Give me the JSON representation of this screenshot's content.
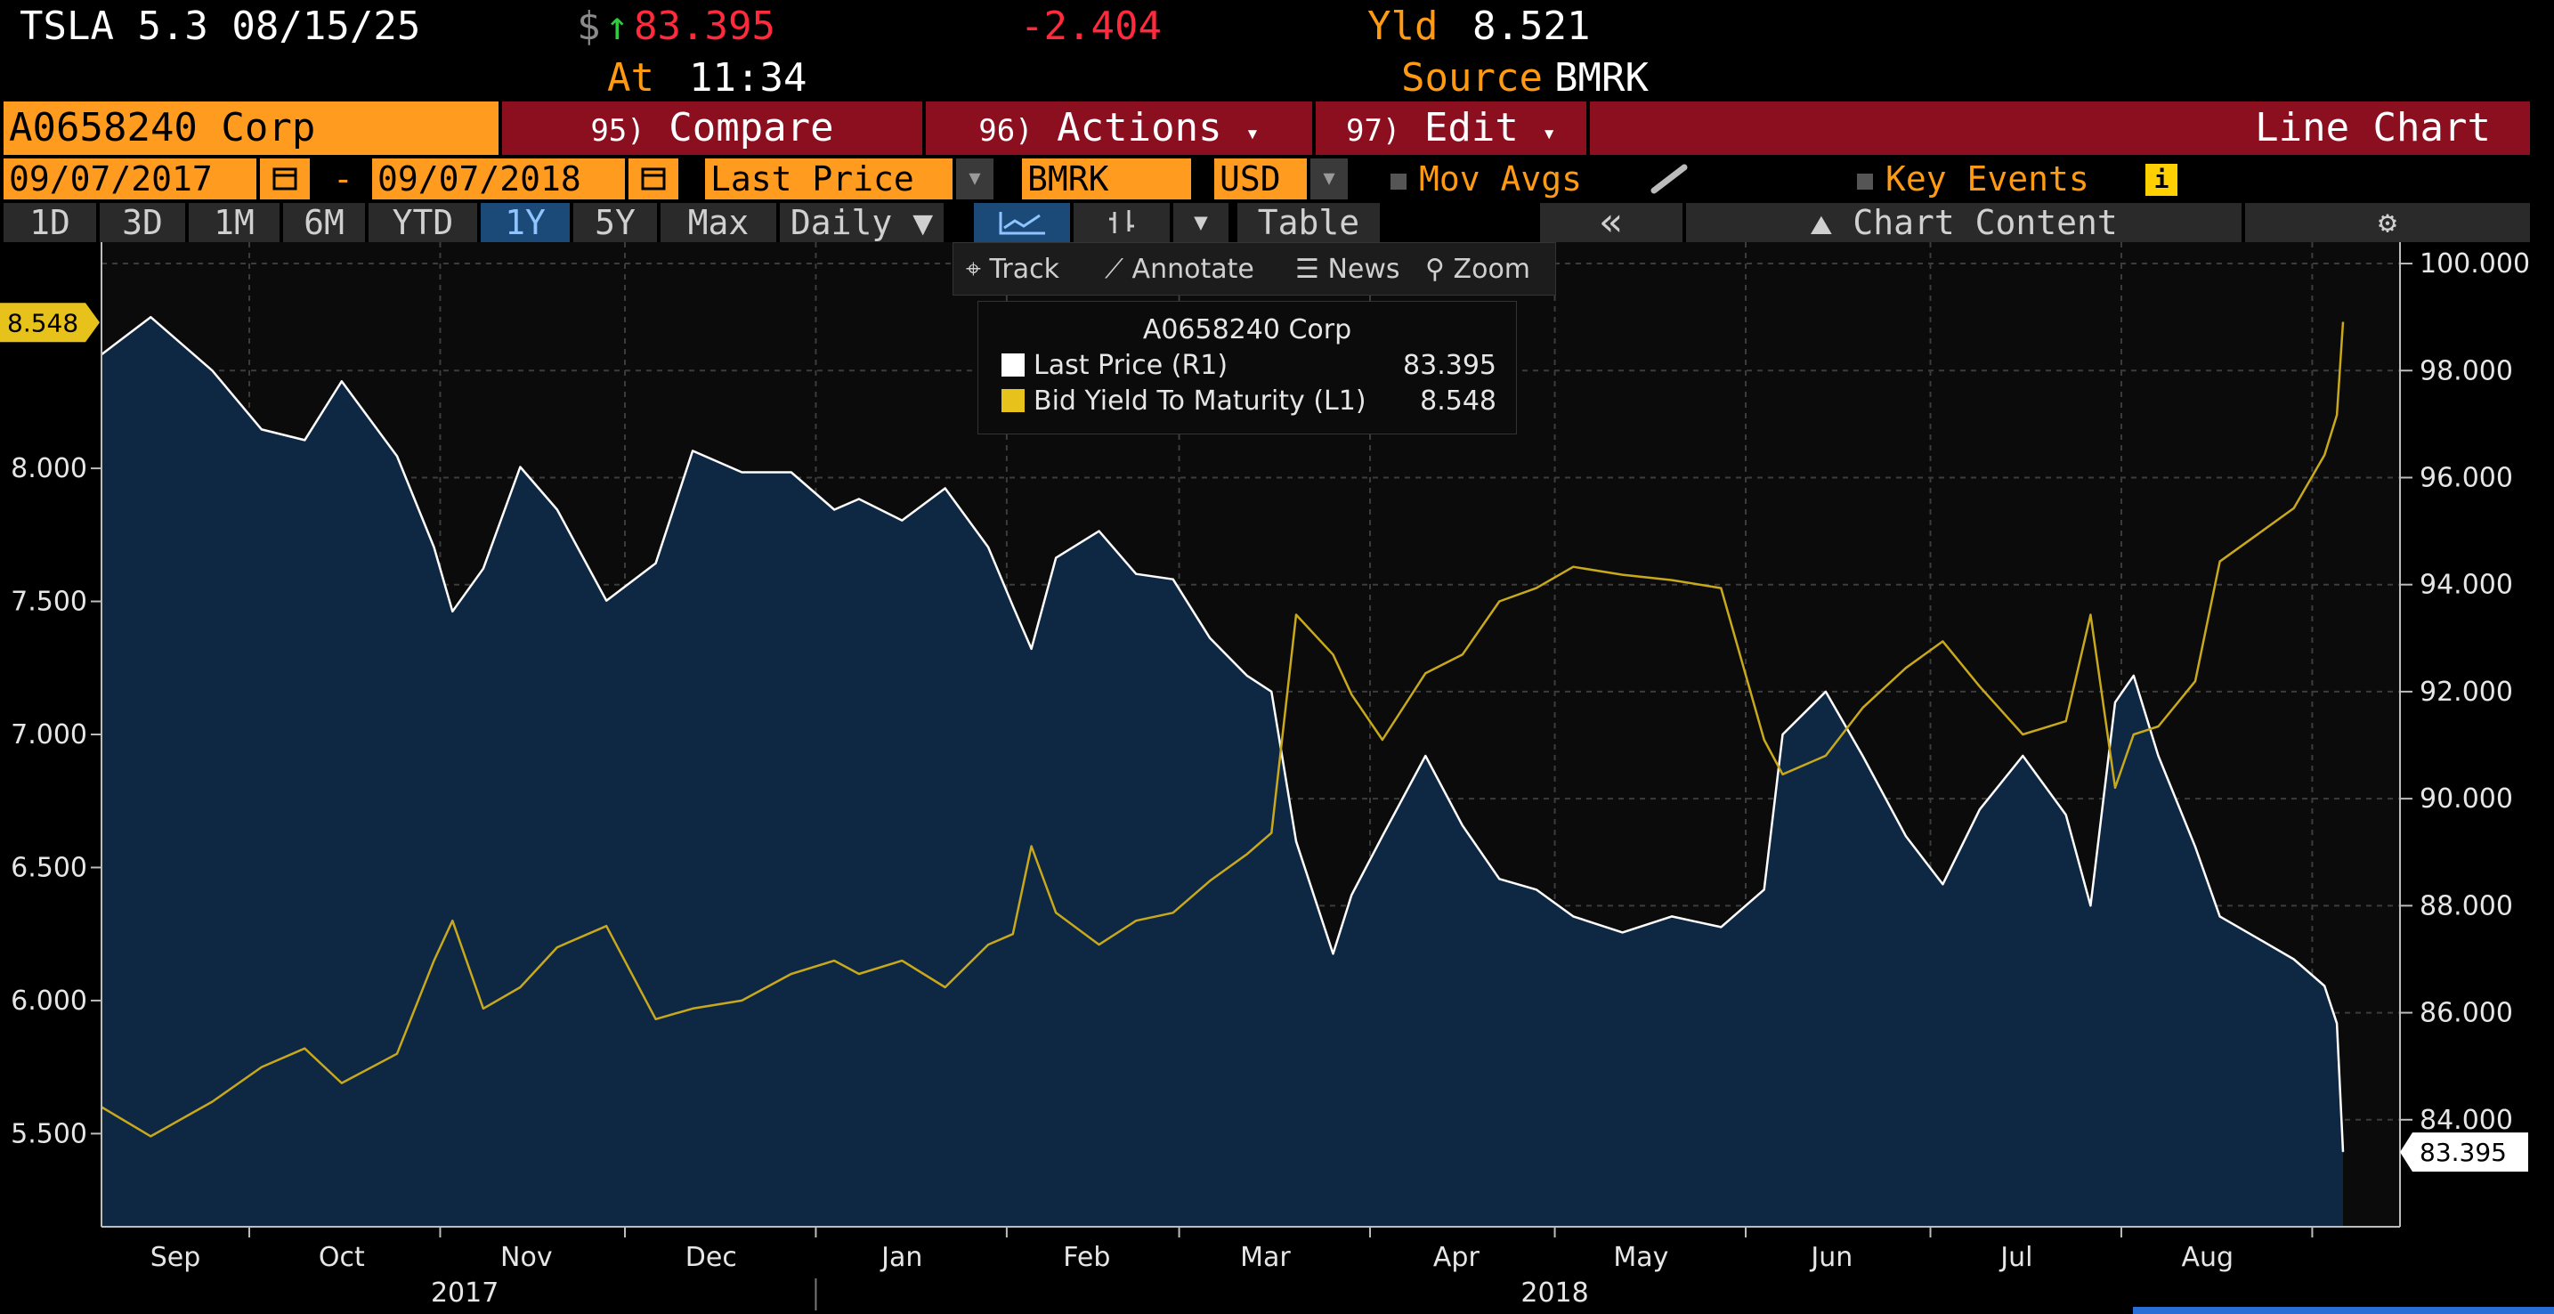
{
  "header": {
    "ticker": "TSLA 5.3 08/15/25",
    "currency_symbol": "$",
    "up_arrow": "↑",
    "price": "83.395",
    "change": "-2.404",
    "yld_label": "Yld",
    "yld_value": "8.521",
    "at_label": "At",
    "time": "11:34",
    "source_label": "Source",
    "source": "BMRK"
  },
  "toolbar": {
    "security": "A0658240 Corp",
    "compare_num": "95)",
    "compare": "Compare",
    "actions_num": "96)",
    "actions": "Actions",
    "edit_num": "97)",
    "edit": "Edit",
    "chart_type": "Line Chart"
  },
  "settings": {
    "start_date": "09/07/2017",
    "dash": "-",
    "end_date": "09/07/2018",
    "field": "Last Price",
    "source": "BMRK",
    "currency": "USD",
    "mov_avgs": "Mov Avgs",
    "key_events": "Key Events",
    "info_icon": "i"
  },
  "periods": {
    "items": [
      "1D",
      "3D",
      "1M",
      "6M",
      "YTD",
      "1Y",
      "5Y",
      "Max"
    ],
    "active": "1Y",
    "frequency": "Daily ▼",
    "table": "Table",
    "collapse": "«",
    "chart_content": "Chart Content",
    "gear": "⚙"
  },
  "chart_tools": {
    "track": "Track",
    "annotate": "Annotate",
    "news": "News",
    "zoom": "Zoom"
  },
  "legend": {
    "title": "A0658240 Corp",
    "entries": [
      {
        "label": "Last Price  (R1)",
        "value": "83.395",
        "color": "#ffffff"
      },
      {
        "label": "Bid Yield To Maturity  (L1)",
        "value": "8.548",
        "color": "#e6c21a"
      }
    ]
  },
  "colors": {
    "price_line": "#ffffff",
    "price_fill": "#0e2743",
    "yield_line": "#c9a91c",
    "accent_orange": "#ff9b1e",
    "accent_red": "#8c0f20"
  },
  "chart_data": {
    "type": "line",
    "x_tick_labels": [
      "Sep",
      "Oct",
      "Nov",
      "Dec",
      "Jan",
      "Feb",
      "Mar",
      "Apr",
      "May",
      "Jun",
      "Jul",
      "Aug"
    ],
    "year_labels": [
      "2017",
      "2018"
    ],
    "left_axis": {
      "ticks": [
        "5.500",
        "6.000",
        "6.500",
        "7.000",
        "7.500",
        "8.000"
      ],
      "ylim": [
        5.15,
        8.85
      ]
    },
    "right_axis": {
      "ticks": [
        "84.000",
        "86.000",
        "88.000",
        "90.000",
        "92.000",
        "94.000",
        "96.000",
        "98.000",
        "100.000"
      ],
      "ylim": [
        82.0,
        100.4
      ]
    },
    "last_labels": {
      "left": "8.548",
      "right": "83.395"
    },
    "series": [
      {
        "name": "Last Price",
        "axis": "right",
        "x": [
          "2017-09-07",
          "2017-09-15",
          "2017-09-25",
          "2017-10-03",
          "2017-10-10",
          "2017-10-16",
          "2017-10-25",
          "2017-10-31",
          "2017-11-03",
          "2017-11-08",
          "2017-11-14",
          "2017-11-20",
          "2017-11-28",
          "2017-12-06",
          "2017-12-12",
          "2017-12-20",
          "2017-12-28",
          "2018-01-04",
          "2018-01-08",
          "2018-01-15",
          "2018-01-22",
          "2018-01-29",
          "2018-02-02",
          "2018-02-05",
          "2018-02-09",
          "2018-02-16",
          "2018-02-22",
          "2018-02-28",
          "2018-03-06",
          "2018-03-12",
          "2018-03-16",
          "2018-03-20",
          "2018-03-26",
          "2018-03-29",
          "2018-04-03",
          "2018-04-10",
          "2018-04-16",
          "2018-04-22",
          "2018-04-28",
          "2018-05-04",
          "2018-05-12",
          "2018-05-20",
          "2018-05-28",
          "2018-06-04",
          "2018-06-07",
          "2018-06-14",
          "2018-06-20",
          "2018-06-27",
          "2018-07-03",
          "2018-07-09",
          "2018-07-16",
          "2018-07-23",
          "2018-07-27",
          "2018-07-31",
          "2018-08-03",
          "2018-08-07",
          "2018-08-13",
          "2018-08-17",
          "2018-08-23",
          "2018-08-29",
          "2018-09-03",
          "2018-09-05",
          "2018-09-06"
        ],
        "values": [
          98.3,
          99.0,
          98.0,
          96.9,
          96.7,
          97.8,
          96.4,
          94.7,
          93.5,
          94.3,
          96.2,
          95.4,
          93.7,
          94.4,
          96.5,
          96.1,
          96.1,
          95.4,
          95.6,
          95.2,
          95.8,
          94.7,
          93.6,
          92.8,
          94.5,
          95.0,
          94.2,
          94.1,
          93.0,
          92.3,
          92.0,
          89.2,
          87.1,
          88.2,
          89.3,
          90.8,
          89.5,
          88.5,
          88.3,
          87.8,
          87.5,
          87.8,
          87.6,
          88.3,
          91.2,
          92.0,
          90.8,
          89.3,
          88.4,
          89.8,
          90.8,
          89.7,
          88.0,
          91.8,
          92.3,
          90.8,
          89.1,
          87.8,
          87.4,
          87.0,
          86.5,
          85.8,
          83.4
        ]
      },
      {
        "name": "Bid Yield To Maturity",
        "axis": "left",
        "x": [
          "2017-09-07",
          "2017-09-15",
          "2017-09-25",
          "2017-10-03",
          "2017-10-10",
          "2017-10-16",
          "2017-10-25",
          "2017-10-31",
          "2017-11-03",
          "2017-11-08",
          "2017-11-14",
          "2017-11-20",
          "2017-11-28",
          "2017-12-06",
          "2017-12-12",
          "2017-12-20",
          "2017-12-28",
          "2018-01-04",
          "2018-01-08",
          "2018-01-15",
          "2018-01-22",
          "2018-01-29",
          "2018-02-02",
          "2018-02-05",
          "2018-02-09",
          "2018-02-16",
          "2018-02-22",
          "2018-02-28",
          "2018-03-06",
          "2018-03-12",
          "2018-03-16",
          "2018-03-20",
          "2018-03-26",
          "2018-03-29",
          "2018-04-03",
          "2018-04-10",
          "2018-04-16",
          "2018-04-22",
          "2018-04-28",
          "2018-05-04",
          "2018-05-12",
          "2018-05-20",
          "2018-05-28",
          "2018-06-04",
          "2018-06-07",
          "2018-06-14",
          "2018-06-20",
          "2018-06-27",
          "2018-07-03",
          "2018-07-09",
          "2018-07-16",
          "2018-07-23",
          "2018-07-27",
          "2018-07-31",
          "2018-08-03",
          "2018-08-07",
          "2018-08-13",
          "2018-08-17",
          "2018-08-23",
          "2018-08-29",
          "2018-09-03",
          "2018-09-05",
          "2018-09-06"
        ],
        "values": [
          5.6,
          5.49,
          5.62,
          5.75,
          5.82,
          5.69,
          5.8,
          6.15,
          6.3,
          5.97,
          6.05,
          6.2,
          6.28,
          5.93,
          5.97,
          6.0,
          6.1,
          6.15,
          6.1,
          6.15,
          6.05,
          6.21,
          6.25,
          6.58,
          6.33,
          6.21,
          6.3,
          6.33,
          6.45,
          6.55,
          6.63,
          7.45,
          7.3,
          7.15,
          6.98,
          7.23,
          7.3,
          7.5,
          7.55,
          7.63,
          7.6,
          7.58,
          7.55,
          6.98,
          6.85,
          6.92,
          7.1,
          7.25,
          7.35,
          7.18,
          7.0,
          7.05,
          7.45,
          6.8,
          7.0,
          7.03,
          7.2,
          7.65,
          7.75,
          7.85,
          8.05,
          8.2,
          8.55
        ]
      }
    ]
  }
}
